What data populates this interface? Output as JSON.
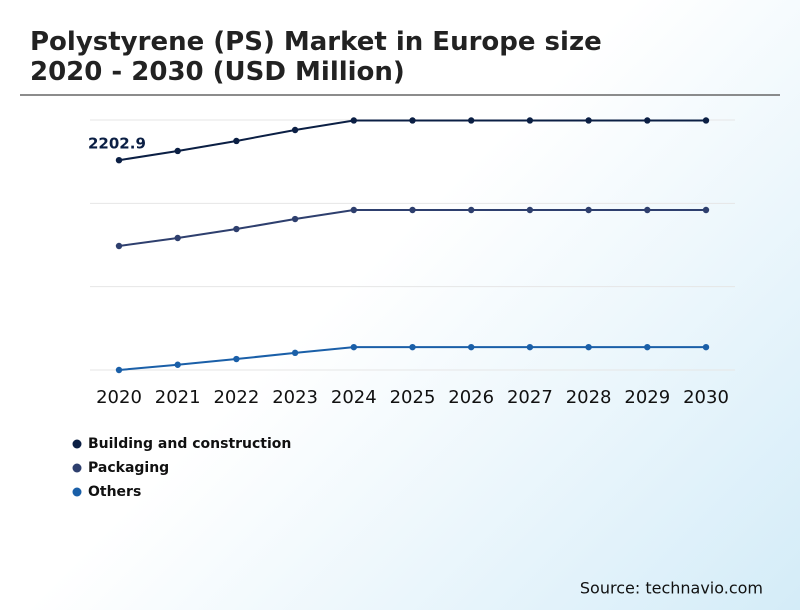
{
  "chart_data": {
    "type": "line",
    "title": "Polystyrene (PS) Market in Europe size",
    "subtitle": "2020 - 2030 (USD Million)",
    "categories": [
      "2020",
      "2021",
      "2022",
      "2023",
      "2024",
      "2025",
      "2026",
      "2027",
      "2028",
      "2029",
      "2030"
    ],
    "series": [
      {
        "name": "Building and construction",
        "color": "#0b1f44",
        "values": [
          2202.9,
          2300,
          2405,
          2520,
          2620,
          2620,
          2620,
          2620,
          2620,
          2620,
          2620
        ]
      },
      {
        "name": "Packaging",
        "color": "#2e3f6e",
        "values": [
          1302,
          1386,
          1480,
          1585,
          1680,
          1680,
          1680,
          1680,
          1680,
          1680,
          1680
        ]
      },
      {
        "name": "Others",
        "color": "#1a5fa8",
        "values": [
          0,
          55,
          115,
          180,
          240,
          240,
          240,
          240,
          240,
          240,
          240
        ]
      }
    ],
    "ylim": [
      0,
      2625
    ],
    "yticks": [
      0,
      875,
      1750,
      2625
    ],
    "show_y_tick_labels": false,
    "grid": true,
    "source": "Source: technavio.com"
  }
}
